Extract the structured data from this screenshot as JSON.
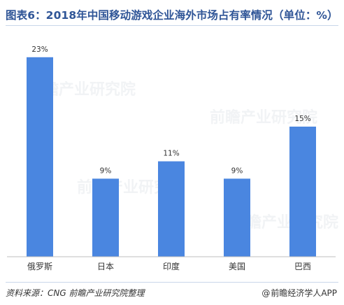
{
  "header": {
    "title": "图表6：2018年中国移动游戏企业海外市场占有率情况（单位：%）"
  },
  "footer": {
    "source": "资料来源：CNG    前瞻产业研究院整理",
    "brand": "前瞻经济学人APP",
    "brand_icon": "at-sign-icon"
  },
  "watermark": {
    "text": "前瞻产业研究院"
  },
  "colors": {
    "bar": "#4a86e0",
    "title": "#2f5597",
    "axis": "#bfbfbf"
  },
  "chart_data": {
    "type": "bar",
    "title": "",
    "xlabel": "",
    "ylabel": "",
    "categories": [
      "俄罗斯",
      "日本",
      "印度",
      "美国",
      "巴西"
    ],
    "values": [
      23,
      9,
      11,
      9,
      15
    ],
    "data_labels": [
      "23%",
      "9%",
      "11%",
      "9%",
      "15%"
    ],
    "ylim": [
      0,
      25
    ],
    "grid": false,
    "legend": "none"
  }
}
